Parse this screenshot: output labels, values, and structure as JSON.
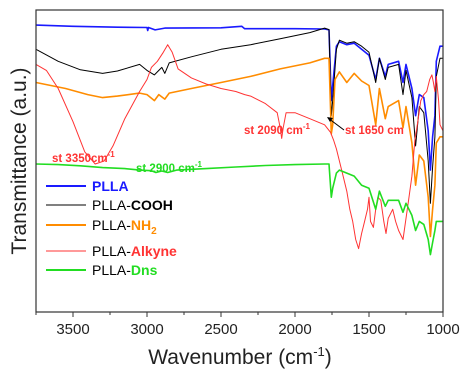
{
  "chart_data": {
    "type": "line",
    "xlabel": "Wavenumber (cm",
    "xlabel_sup": "-1",
    "xlabel_end": ")",
    "ylabel": "Transmittance (a.u.)",
    "xlim": [
      3750,
      1000
    ],
    "x_reversed": true,
    "x_ticks": [
      3500,
      3000,
      2500,
      2000,
      1500,
      1000
    ],
    "ylim": [
      0,
      100
    ],
    "grid": false,
    "legend_position": "bottom-left",
    "series": [
      {
        "name": "PLLA",
        "color": "#1a1aff",
        "legend_plain": "",
        "legend_bold": "PLLA",
        "legend_sub": "",
        "bold_color": "#1a1aff",
        "points": [
          [
            3750,
            95
          ],
          [
            3500,
            94.6
          ],
          [
            3200,
            94.3
          ],
          [
            3000,
            94.2
          ],
          [
            2995,
            93.2
          ],
          [
            2990,
            94.2
          ],
          [
            2945,
            93.4
          ],
          [
            2880,
            94
          ],
          [
            2500,
            94.1
          ],
          [
            2360,
            94.6
          ],
          [
            2340,
            93.8
          ],
          [
            2000,
            93.8
          ],
          [
            1800,
            93.7
          ],
          [
            1770,
            93.4
          ],
          [
            1755,
            70
          ],
          [
            1745,
            75
          ],
          [
            1720,
            88
          ],
          [
            1700,
            89.5
          ],
          [
            1650,
            88.5
          ],
          [
            1600,
            89
          ],
          [
            1550,
            87
          ],
          [
            1500,
            85
          ],
          [
            1455,
            77
          ],
          [
            1430,
            84
          ],
          [
            1390,
            78
          ],
          [
            1370,
            82
          ],
          [
            1300,
            83
          ],
          [
            1270,
            76
          ],
          [
            1250,
            82
          ],
          [
            1210,
            74
          ],
          [
            1185,
            65
          ],
          [
            1160,
            72
          ],
          [
            1130,
            71
          ],
          [
            1100,
            60
          ],
          [
            1085,
            47
          ],
          [
            1070,
            58
          ],
          [
            1055,
            65
          ],
          [
            1045,
            83
          ],
          [
            1020,
            88
          ],
          [
            1000,
            88
          ]
        ]
      },
      {
        "name": "PLLA-COOH",
        "color": "#000000",
        "legend_plain": "PLLA-",
        "legend_bold": "COOH",
        "legend_sub": "",
        "bold_color": "#000000",
        "points": [
          [
            3750,
            87
          ],
          [
            3600,
            83
          ],
          [
            3450,
            80.2
          ],
          [
            3300,
            79
          ],
          [
            3200,
            79.8
          ],
          [
            3050,
            82
          ],
          [
            3000,
            80
          ],
          [
            2950,
            78.5
          ],
          [
            2900,
            81
          ],
          [
            2880,
            79
          ],
          [
            2850,
            82.5
          ],
          [
            2700,
            84.5
          ],
          [
            2500,
            87
          ],
          [
            2300,
            88.5
          ],
          [
            2100,
            90.5
          ],
          [
            1900,
            92.5
          ],
          [
            1800,
            94
          ],
          [
            1770,
            93.5
          ],
          [
            1755,
            65
          ],
          [
            1745,
            70
          ],
          [
            1720,
            87
          ],
          [
            1700,
            90
          ],
          [
            1650,
            89
          ],
          [
            1600,
            89.5
          ],
          [
            1550,
            88
          ],
          [
            1500,
            86
          ],
          [
            1455,
            76
          ],
          [
            1430,
            84
          ],
          [
            1390,
            77
          ],
          [
            1370,
            81
          ],
          [
            1300,
            82
          ],
          [
            1270,
            72
          ],
          [
            1250,
            80
          ],
          [
            1210,
            71
          ],
          [
            1185,
            55
          ],
          [
            1160,
            68
          ],
          [
            1130,
            66
          ],
          [
            1100,
            50
          ],
          [
            1085,
            36
          ],
          [
            1070,
            48
          ],
          [
            1055,
            58
          ],
          [
            1045,
            78
          ],
          [
            1020,
            84
          ],
          [
            1000,
            84
          ]
        ]
      },
      {
        "name": "PLLA-NH2",
        "color": "#ff8c00",
        "legend_plain": "PLLA-",
        "legend_bold": "NH",
        "legend_sub": "2",
        "bold_color": "#ff8c00",
        "points": [
          [
            3750,
            76
          ],
          [
            3550,
            74
          ],
          [
            3400,
            72
          ],
          [
            3300,
            71
          ],
          [
            3200,
            71.5
          ],
          [
            3050,
            72.5
          ],
          [
            3000,
            72
          ],
          [
            2950,
            70
          ],
          [
            2920,
            72
          ],
          [
            2880,
            70.5
          ],
          [
            2850,
            72.5
          ],
          [
            2700,
            74
          ],
          [
            2500,
            76
          ],
          [
            2300,
            78
          ],
          [
            2100,
            80.5
          ],
          [
            1900,
            82.5
          ],
          [
            1800,
            84
          ],
          [
            1770,
            84
          ],
          [
            1755,
            59
          ],
          [
            1745,
            62
          ],
          [
            1730,
            77
          ],
          [
            1700,
            79.5
          ],
          [
            1650,
            76
          ],
          [
            1600,
            79
          ],
          [
            1550,
            76.5
          ],
          [
            1500,
            75
          ],
          [
            1455,
            62
          ],
          [
            1430,
            74
          ],
          [
            1390,
            64
          ],
          [
            1370,
            68
          ],
          [
            1300,
            70
          ],
          [
            1270,
            61
          ],
          [
            1250,
            68
          ],
          [
            1210,
            56
          ],
          [
            1185,
            42
          ],
          [
            1160,
            52
          ],
          [
            1130,
            50
          ],
          [
            1100,
            38
          ],
          [
            1085,
            25
          ],
          [
            1070,
            34
          ],
          [
            1055,
            42
          ],
          [
            1045,
            56
          ],
          [
            1020,
            58
          ],
          [
            1000,
            58
          ]
        ]
      },
      {
        "name": "PLLA-Alkyne",
        "color": "#ff3333",
        "legend_plain": "PLLA-",
        "legend_bold": "Alkyne",
        "legend_sub": "",
        "bold_color": "#ff3333",
        "points": [
          [
            3750,
            82
          ],
          [
            3680,
            80
          ],
          [
            3600,
            74
          ],
          [
            3500,
            63
          ],
          [
            3420,
            53
          ],
          [
            3350,
            49
          ],
          [
            3290,
            50
          ],
          [
            3230,
            55
          ],
          [
            3150,
            64
          ],
          [
            3050,
            73
          ],
          [
            3000,
            77
          ],
          [
            2970,
            81
          ],
          [
            2930,
            83
          ],
          [
            2890,
            86
          ],
          [
            2860,
            88.5
          ],
          [
            2830,
            86
          ],
          [
            2790,
            80.5
          ],
          [
            2700,
            77.5
          ],
          [
            2600,
            75.5
          ],
          [
            2500,
            74
          ],
          [
            2400,
            73
          ],
          [
            2340,
            72
          ],
          [
            2300,
            71.5
          ],
          [
            2200,
            69
          ],
          [
            2120,
            66
          ],
          [
            2100,
            61
          ],
          [
            2090,
            57.5
          ],
          [
            2080,
            61
          ],
          [
            2060,
            66
          ],
          [
            2000,
            66
          ],
          [
            1900,
            64
          ],
          [
            1800,
            62
          ],
          [
            1760,
            59.5
          ],
          [
            1740,
            57
          ],
          [
            1720,
            54
          ],
          [
            1700,
            50
          ],
          [
            1680,
            46
          ],
          [
            1650,
            40
          ],
          [
            1630,
            34
          ],
          [
            1610,
            30
          ],
          [
            1590,
            24
          ],
          [
            1570,
            21
          ],
          [
            1550,
            26
          ],
          [
            1530,
            30
          ],
          [
            1510,
            34
          ],
          [
            1500,
            38
          ],
          [
            1490,
            30
          ],
          [
            1470,
            28
          ],
          [
            1455,
            34
          ],
          [
            1440,
            38
          ],
          [
            1420,
            37
          ],
          [
            1400,
            30
          ],
          [
            1385,
            26
          ],
          [
            1370,
            31
          ],
          [
            1340,
            34
          ],
          [
            1320,
            30
          ],
          [
            1300,
            27
          ],
          [
            1270,
            24
          ],
          [
            1250,
            31
          ],
          [
            1230,
            38
          ],
          [
            1210,
            45
          ],
          [
            1190,
            57
          ],
          [
            1170,
            63
          ],
          [
            1150,
            70
          ],
          [
            1130,
            72
          ],
          [
            1110,
            73
          ],
          [
            1090,
            77
          ],
          [
            1075,
            78.5
          ],
          [
            1065,
            76
          ],
          [
            1055,
            73
          ],
          [
            1045,
            78
          ],
          [
            1030,
            70
          ],
          [
            1020,
            62
          ],
          [
            1000,
            60
          ]
        ]
      },
      {
        "name": "PLLA-Dns",
        "color": "#22dd22",
        "legend_plain": "PLLA-",
        "legend_bold": "Dns",
        "legend_sub": "",
        "bold_color": "#22dd22",
        "points": [
          [
            3750,
            49
          ],
          [
            3600,
            48.8
          ],
          [
            3450,
            48.4
          ],
          [
            3300,
            47.8
          ],
          [
            3150,
            47.5
          ],
          [
            3050,
            47
          ],
          [
            2970,
            46.8
          ],
          [
            2940,
            46.2
          ],
          [
            2900,
            46.7
          ],
          [
            2860,
            46.2
          ],
          [
            2800,
            47
          ],
          [
            2600,
            47.5
          ],
          [
            2400,
            48
          ],
          [
            2200,
            48.5
          ],
          [
            2000,
            48.8
          ],
          [
            1800,
            49
          ],
          [
            1770,
            49
          ],
          [
            1755,
            38
          ],
          [
            1745,
            41
          ],
          [
            1720,
            46
          ],
          [
            1700,
            47
          ],
          [
            1650,
            46
          ],
          [
            1600,
            45
          ],
          [
            1550,
            42
          ],
          [
            1500,
            41
          ],
          [
            1455,
            34
          ],
          [
            1430,
            40
          ],
          [
            1390,
            35
          ],
          [
            1370,
            37
          ],
          [
            1300,
            37
          ],
          [
            1270,
            33
          ],
          [
            1250,
            36
          ],
          [
            1210,
            32
          ],
          [
            1185,
            27
          ],
          [
            1160,
            30
          ],
          [
            1130,
            29
          ],
          [
            1100,
            24
          ],
          [
            1085,
            19
          ],
          [
            1070,
            23
          ],
          [
            1055,
            27
          ],
          [
            1045,
            30
          ],
          [
            1020,
            30
          ],
          [
            1000,
            30
          ]
        ]
      }
    ],
    "annotations": [
      {
        "id": "ann-3350",
        "text": "st 3350cm",
        "sup": "-1",
        "color": "#ff3333",
        "x": 3350
      },
      {
        "id": "ann-2900",
        "text": "st 2900 cm",
        "sup": "-1",
        "color": "#22dd22",
        "x": 2900
      },
      {
        "id": "ann-2090",
        "text": "st 2090 cm",
        "sup": "-1",
        "color": "#ff3333",
        "x": 2090
      },
      {
        "id": "ann-1650",
        "text": "st 1650 cm",
        "sup": "",
        "color": "#ff3333",
        "x": 1650
      }
    ]
  }
}
